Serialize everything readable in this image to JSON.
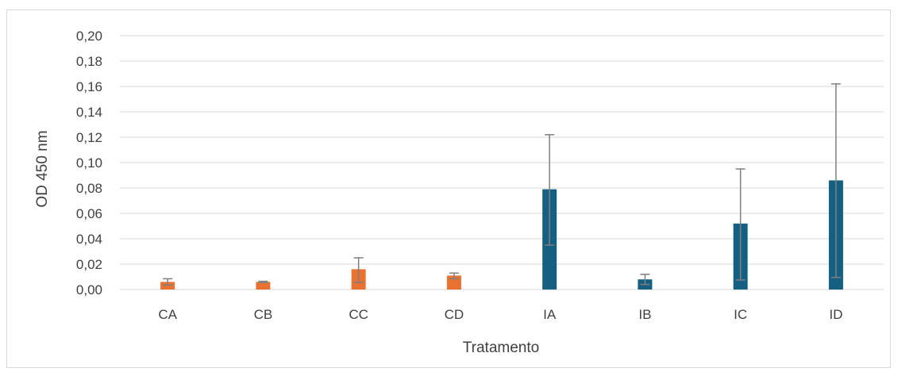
{
  "chart_data": {
    "type": "bar",
    "title": "",
    "xlabel": "Tratamento",
    "ylabel": "OD 450 nm",
    "ylim": [
      0,
      0.2
    ],
    "yticks": [
      "0,00",
      "0,02",
      "0,04",
      "0,06",
      "0,08",
      "0,10",
      "0,12",
      "0,14",
      "0,16",
      "0,18",
      "0,20"
    ],
    "grid": true,
    "categories": [
      "CA",
      "CB",
      "CC",
      "CD",
      "IA",
      "IB",
      "IC",
      "ID"
    ],
    "values": [
      0.006,
      0.006,
      0.016,
      0.011,
      0.079,
      0.008,
      0.052,
      0.086
    ],
    "error_low": [
      0.0035,
      0.0055,
      0.0055,
      0.0085,
      0.035,
      0.004,
      0.0075,
      0.0095
    ],
    "error_high": [
      0.0085,
      0.0065,
      0.025,
      0.013,
      0.122,
      0.012,
      0.095,
      0.162
    ],
    "colors": [
      "#e97132",
      "#e97132",
      "#e97132",
      "#e97132",
      "#156082",
      "#156082",
      "#156082",
      "#156082"
    ],
    "error_color": "#7f7f7f",
    "grid_color": "#d9d9d9"
  }
}
